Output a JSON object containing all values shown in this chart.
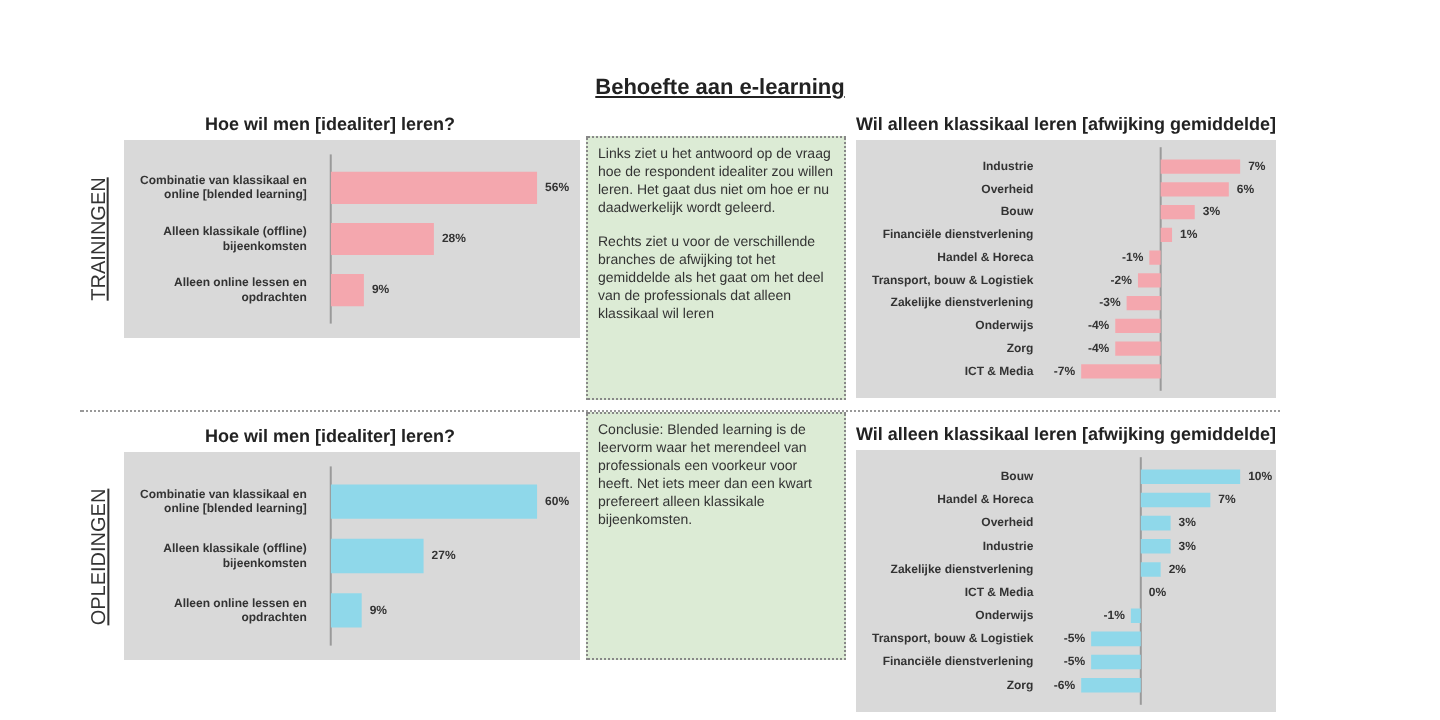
{
  "chart_data": [
    {
      "type": "other",
      "title": "Behoefte aan e-learning"
    },
    {
      "type": "bar",
      "orientation": "horizontal",
      "title": "Hoe wil men [idealiter] leren?",
      "ylabel": "TRAININGEN",
      "categories": [
        "Combinatie van klassikaal en online [blended learning]",
        "Alleen klassikale (offline) bijeenkomsten",
        "Alleen online lessen en opdrachten"
      ],
      "values": [
        56,
        28,
        9
      ],
      "color": "#f4a7ae",
      "value_labels": [
        "56%",
        "28%",
        "9%"
      ]
    },
    {
      "type": "other",
      "annotations": [
        "Links ziet u het antwoord op de vraag hoe de respondent idealiter zou willen leren. Het gaat dus niet om hoe er nu daadwerkelijk wordt geleerd.",
        "Rechts ziet u voor de verschillende branches de afwijking tot het gemiddelde als het gaat om het deel van de professionals dat alleen klassikaal wil leren"
      ]
    },
    {
      "type": "bar",
      "orientation": "horizontal",
      "title": "Wil alleen klassikaal leren [afwijking gemiddelde]",
      "categories": [
        "Industrie",
        "Overheid",
        "Bouw",
        "Financiële dienstverlening",
        "Handel & Horeca",
        "Transport, bouw & Logistiek",
        "Zakelijke dienstverlening",
        "Onderwijs",
        "Zorg",
        "ICT & Media"
      ],
      "values": [
        7,
        6,
        3,
        1,
        -1,
        -2,
        -3,
        -4,
        -4,
        -7
      ],
      "color": "#f4a7ae",
      "value_labels": [
        "7%",
        "6%",
        "3%",
        "1%",
        "-1%",
        "-2%",
        "-3%",
        "-4%",
        "-4%",
        "-7%"
      ]
    },
    {
      "type": "bar",
      "orientation": "horizontal",
      "title": "Hoe wil men [idealiter] leren?",
      "ylabel": "OPLEIDINGEN",
      "categories": [
        "Combinatie van klassikaal en online [blended learning]",
        "Alleen klassikale (offline) bijeenkomsten",
        "Alleen online lessen en opdrachten"
      ],
      "values": [
        60,
        27,
        9
      ],
      "color": "#8fd8ea",
      "value_labels": [
        "60%",
        "27%",
        "9%"
      ]
    },
    {
      "type": "other",
      "annotations": [
        "Conclusie: Blended learning is de leervorm waar het merendeel van professionals een voorkeur voor heeft. Net iets meer dan een kwart prefereert alleen klassikale bijeenkomsten."
      ]
    },
    {
      "type": "bar",
      "orientation": "horizontal",
      "title": "Wil alleen klassikaal leren [afwijking gemiddelde]",
      "categories": [
        "Bouw",
        "Handel & Horeca",
        "Overheid",
        "Industrie",
        "Zakelijke dienstverlening",
        "ICT & Media",
        "Onderwijs",
        "Transport, bouw & Logistiek",
        "Financiële dienstverlening",
        "Zorg"
      ],
      "values": [
        10,
        7,
        3,
        3,
        2,
        0,
        -1,
        -5,
        -5,
        -6
      ],
      "color": "#8fd8ea",
      "value_labels": [
        "10%",
        "7%",
        "3%",
        "3%",
        "2%",
        "0%",
        "-1%",
        "-5%",
        "-5%",
        "-6%"
      ]
    }
  ]
}
